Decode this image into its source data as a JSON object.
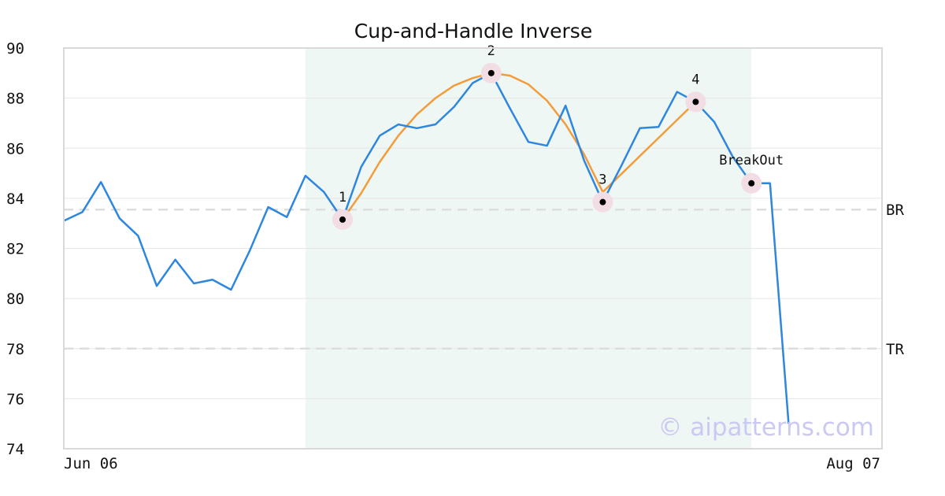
{
  "chart_data": {
    "type": "line",
    "title": "Cup-and-Handle Inverse",
    "watermark": "© aipatterns.com",
    "ylim": [
      74,
      90
    ],
    "y_ticks": [
      74,
      76,
      78,
      80,
      82,
      84,
      86,
      88,
      90
    ],
    "x_tick_labels": [
      "Jun 06",
      "Aug 07"
    ],
    "grid": true,
    "price_series": {
      "color": "#2e86de",
      "values": [
        83.1,
        83.45,
        84.65,
        83.2,
        82.5,
        80.5,
        81.55,
        80.6,
        80.75,
        80.35,
        81.9,
        83.65,
        83.25,
        84.9,
        84.25,
        83.15,
        85.25,
        86.5,
        86.95,
        86.8,
        86.95,
        87.65,
        88.6,
        89.0,
        87.6,
        86.25,
        86.1,
        87.7,
        85.5,
        83.85,
        85.3,
        86.8,
        86.85,
        88.25,
        87.85,
        87.05,
        85.65,
        84.6,
        84.6,
        75.0
      ]
    },
    "fit_series": {
      "color": "#f39c3c",
      "x_index": [
        15,
        16,
        17,
        18,
        19,
        20,
        21,
        22,
        23,
        24,
        25,
        26,
        27,
        28,
        29,
        34
      ],
      "values": [
        83.15,
        84.2,
        85.45,
        86.5,
        87.35,
        88.0,
        88.5,
        88.8,
        89.0,
        88.9,
        88.55,
        87.9,
        86.95,
        85.75,
        84.25,
        87.85
      ]
    },
    "shaded_range": {
      "from_index": 13,
      "to_index": 37,
      "color": "#eef7f3"
    },
    "reference_lines": [
      {
        "label": "BR",
        "value": 83.55
      },
      {
        "label": "TR",
        "value": 78.0
      }
    ],
    "annotations": [
      {
        "label": "1",
        "index": 15,
        "value": 83.15
      },
      {
        "label": "2",
        "index": 23,
        "value": 89.0
      },
      {
        "label": "3",
        "index": 29,
        "value": 83.85
      },
      {
        "label": "4",
        "index": 34,
        "value": 87.85
      },
      {
        "label": "BreakOut",
        "index": 37,
        "value": 84.6
      }
    ]
  }
}
